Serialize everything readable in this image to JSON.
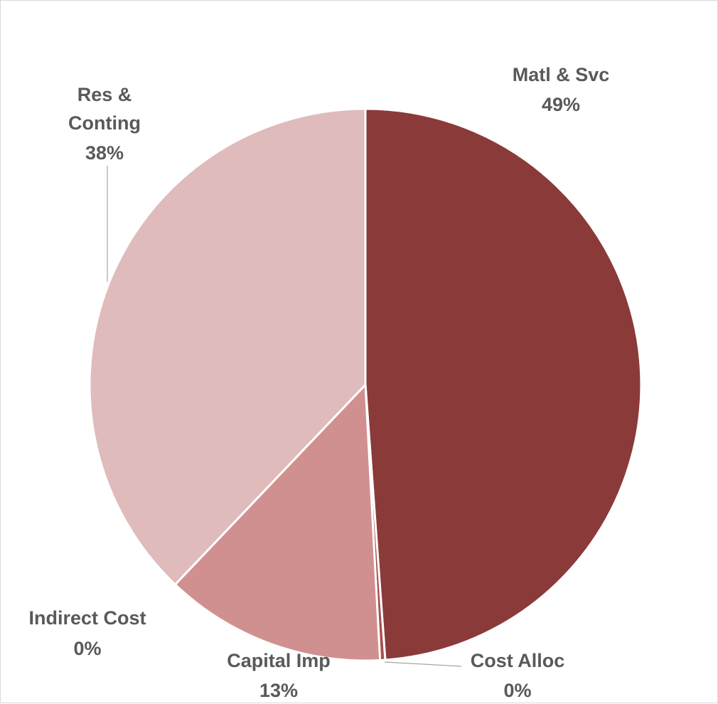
{
  "chart_data": {
    "type": "pie",
    "title": "",
    "slices": [
      {
        "label_lines": [
          "Matl &",
          "Svc"
        ],
        "label": "Matl & Svc",
        "value": 49,
        "display": "49%",
        "color": "#8B3A3A"
      },
      {
        "label_lines": [
          "Cost Alloc"
        ],
        "label": "Cost Alloc",
        "value": 0.3,
        "display": "0%",
        "color": "#A94F4F"
      },
      {
        "label_lines": [
          "Capital Imp"
        ],
        "label": "Capital Imp",
        "value": 13,
        "display": "13%",
        "color": "#D19090"
      },
      {
        "label_lines": [
          "Indirect Cost"
        ],
        "label": "Indirect Cost",
        "value": 0,
        "display": "0%",
        "color": "#C97878"
      },
      {
        "label_lines": [
          "Res &",
          "Conting"
        ],
        "label": "Res & Conting",
        "value": 38,
        "display": "38%",
        "color": "#E0BBBB"
      }
    ],
    "start_angle_deg": 0,
    "direction": "clockwise",
    "legend": "none",
    "data_labels": "category-and-percent-outside"
  }
}
